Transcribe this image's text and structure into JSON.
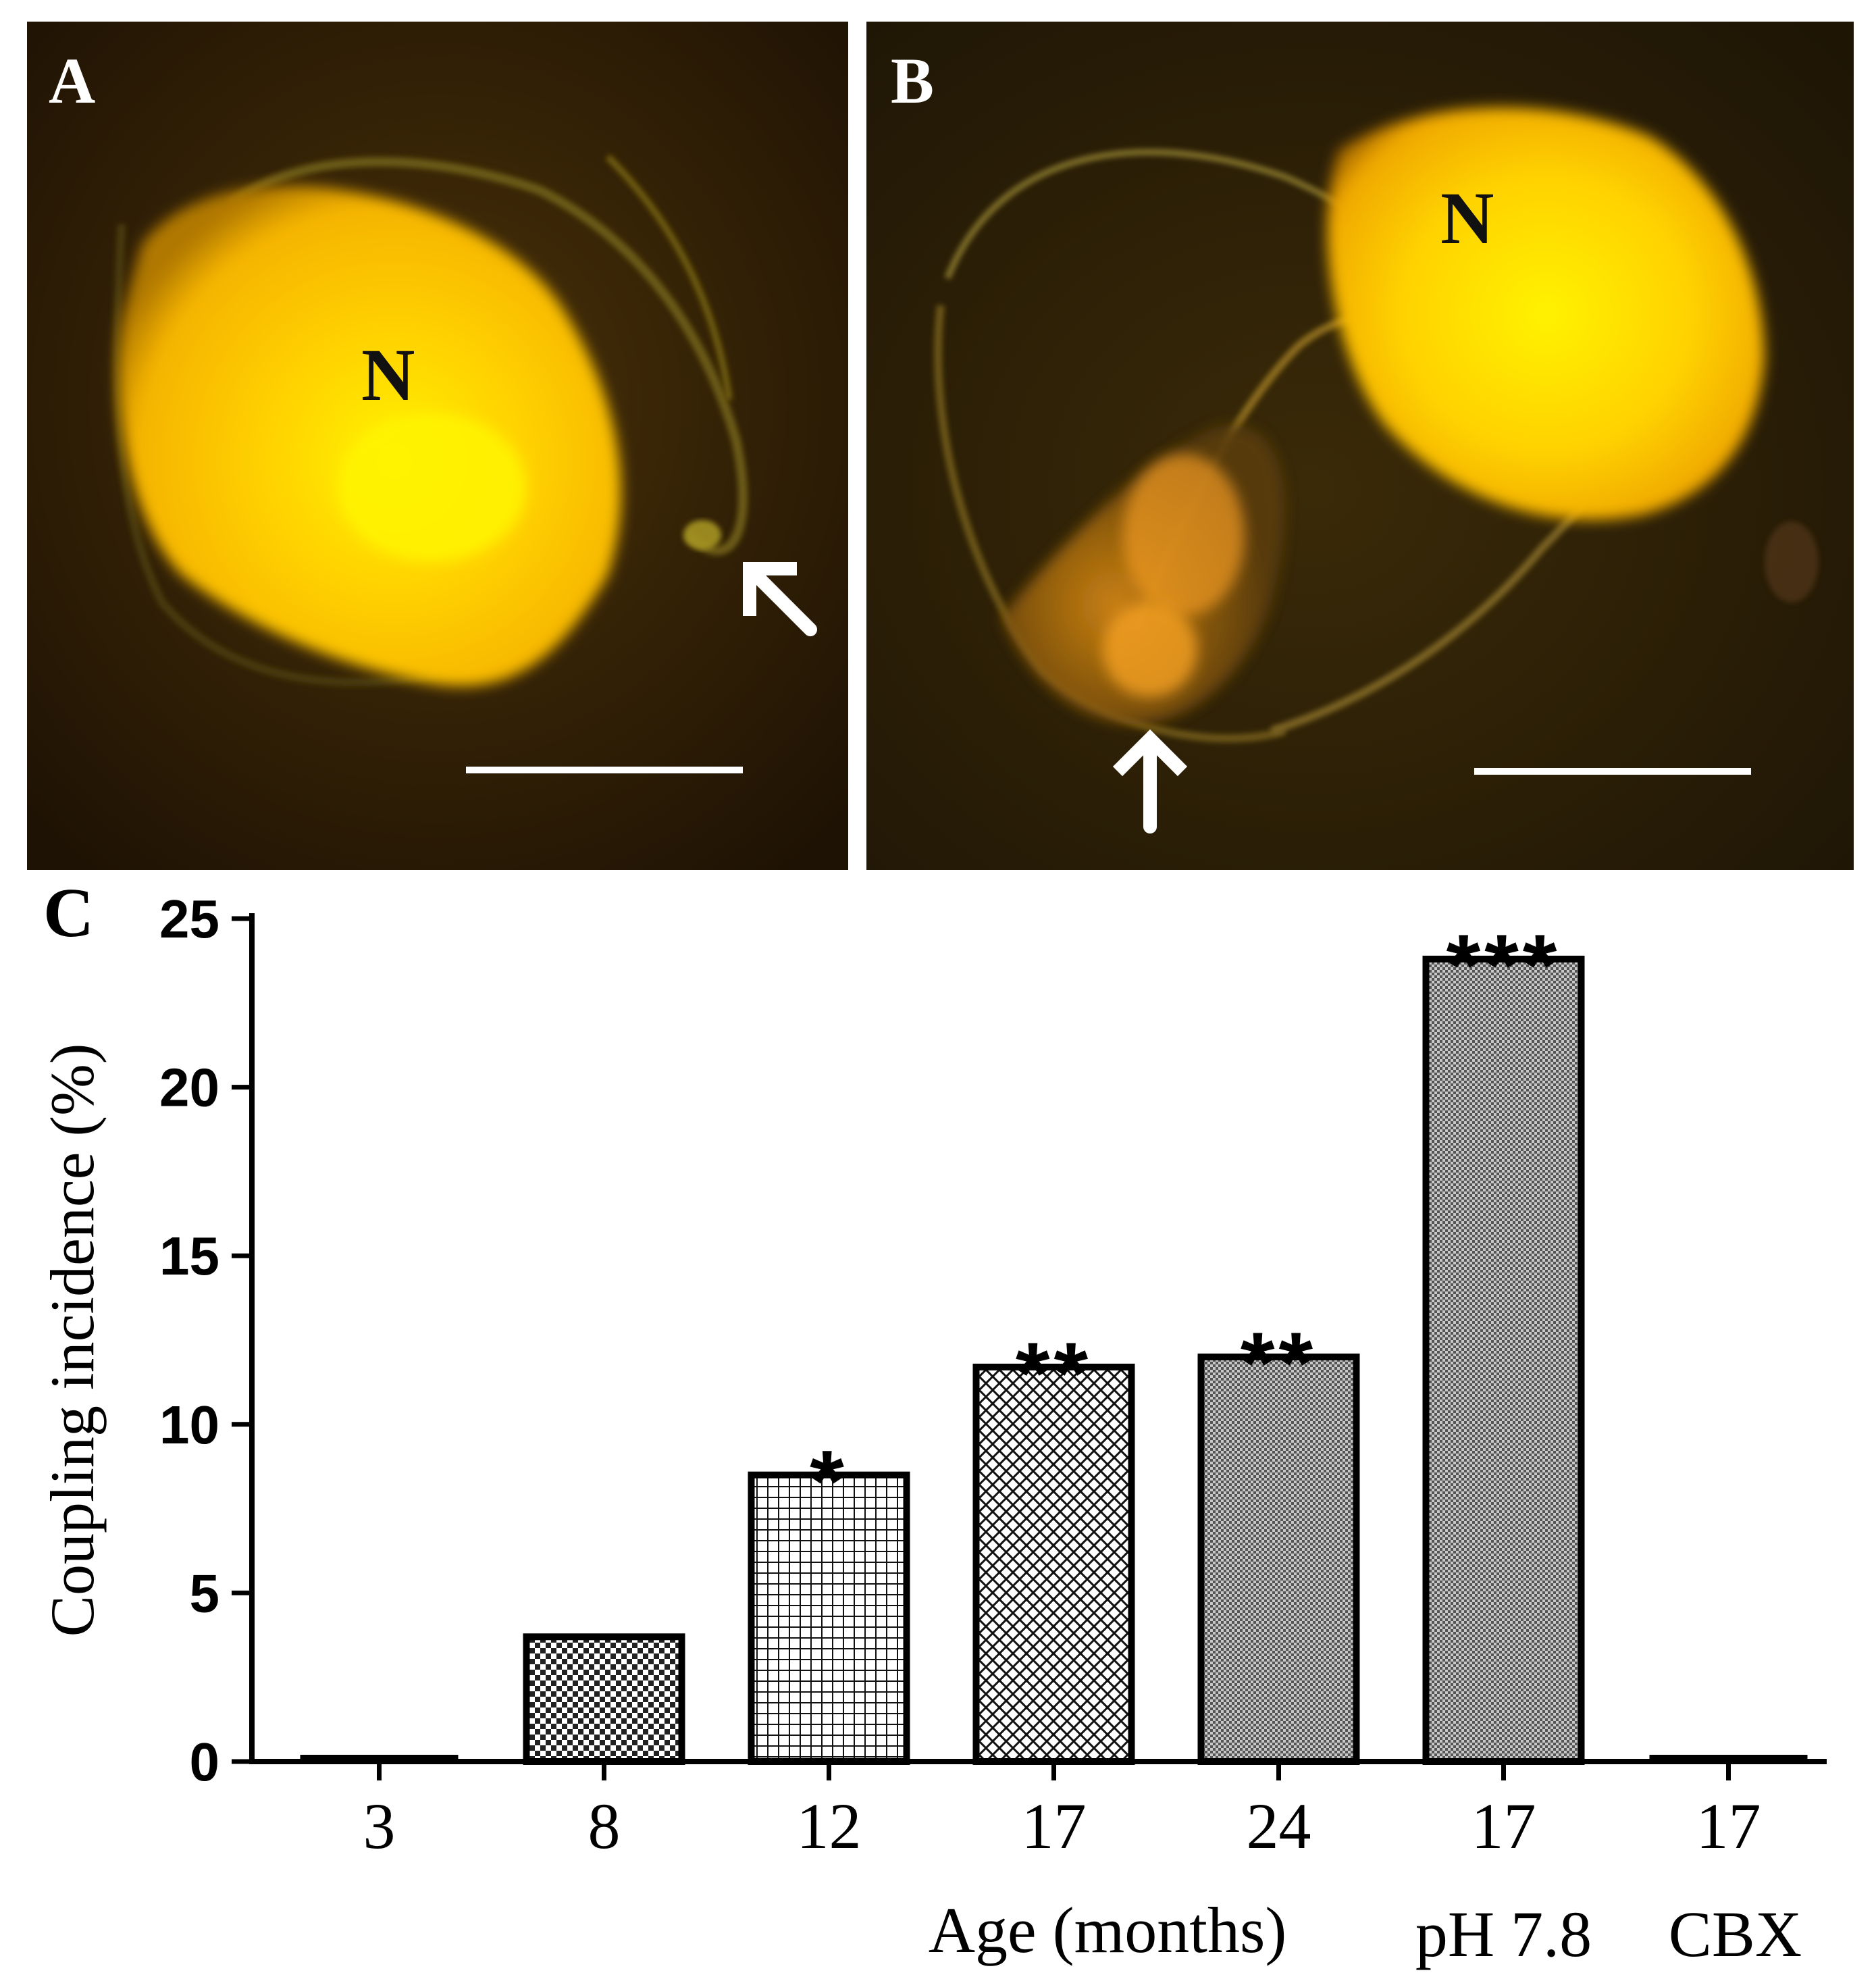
{
  "panels": {
    "a": {
      "letter": "A",
      "nucleus_label": "N"
    },
    "b": {
      "letter": "B",
      "nucleus_label": "N"
    },
    "c": {
      "letter": "C"
    }
  },
  "chart_data": {
    "type": "bar",
    "categories": [
      "3",
      "8",
      "12",
      "17",
      "24",
      "17",
      "17"
    ],
    "category_sublabels": [
      "",
      "",
      "",
      "",
      "",
      "pH 7.8",
      "CBX"
    ],
    "values": [
      0,
      3.7,
      8.5,
      11.7,
      12.0,
      23.8,
      0
    ],
    "significance": [
      "",
      "",
      "*",
      "**",
      "**",
      "***",
      ""
    ],
    "fill_patterns": [
      "none",
      "checker",
      "grid",
      "crosshatch",
      "fine-dots",
      "fine-dots",
      "none"
    ],
    "xlabel": "Age (months)",
    "ylabel": "Coupling incidence (%)",
    "ylim": [
      0,
      25
    ],
    "yticks": [
      0,
      5,
      10,
      15,
      20,
      25
    ],
    "grid": false,
    "legend": "none"
  },
  "colors": {
    "nucleus_glow": "#ffd400",
    "background_dark": "#2b1a06",
    "arrow": "#ffffff",
    "scale_bar": "#ffffff",
    "bar_edge": "#000000"
  }
}
